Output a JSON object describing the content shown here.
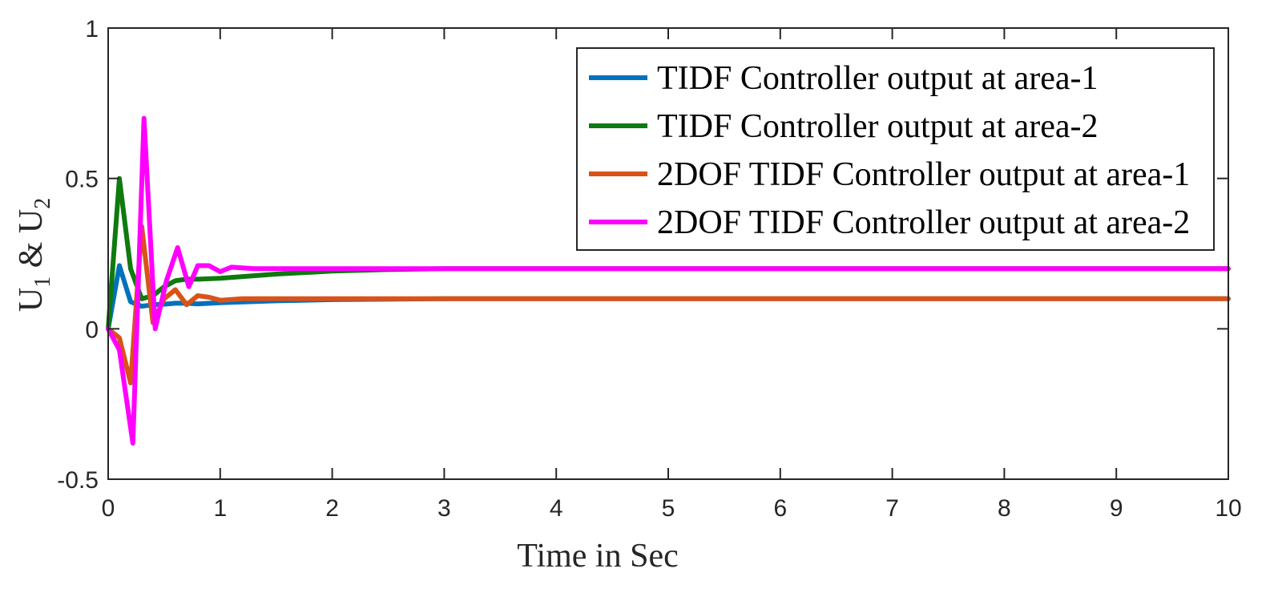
{
  "chart_data": {
    "type": "line",
    "title": "",
    "xlabel": "Time in Sec",
    "ylabel": {
      "u1": "U",
      "sub1": "1",
      "amp": " & ",
      "u2": "U",
      "sub2": "2"
    },
    "xlim": [
      0,
      10
    ],
    "ylim": [
      -0.5,
      1
    ],
    "xticks": [
      0,
      1,
      2,
      3,
      4,
      5,
      6,
      7,
      8,
      9,
      10
    ],
    "xtick_labels": [
      "0",
      "1",
      "2",
      "3",
      "4",
      "5",
      "6",
      "7",
      "8",
      "9",
      "10"
    ],
    "yticks": [
      -0.5,
      0,
      0.5,
      1
    ],
    "ytick_labels": [
      "-0.5",
      "0",
      "0.5",
      "1"
    ],
    "grid": false,
    "legend_position": "top-right",
    "series": [
      {
        "name": "TIDF Controller output at area-1",
        "color": "#0072bd",
        "x": [
          0,
          0.1,
          0.2,
          0.3,
          0.4,
          0.5,
          0.6,
          0.7,
          0.8,
          1.0,
          1.5,
          2.0,
          3.0,
          10.0
        ],
        "y": [
          0,
          0.21,
          0.09,
          0.075,
          0.08,
          0.082,
          0.085,
          0.085,
          0.083,
          0.087,
          0.093,
          0.097,
          0.1,
          0.1
        ]
      },
      {
        "name": "TIDF Controller output at area-2",
        "color": "#0f7a0f",
        "x": [
          0,
          0.1,
          0.2,
          0.3,
          0.4,
          0.5,
          0.6,
          0.7,
          0.8,
          1.0,
          1.5,
          2.0,
          2.5,
          3.0,
          10.0
        ],
        "y": [
          0,
          0.5,
          0.2,
          0.1,
          0.11,
          0.14,
          0.16,
          0.165,
          0.165,
          0.168,
          0.182,
          0.192,
          0.197,
          0.2,
          0.2
        ]
      },
      {
        "name": "2DOF TIDF Controller output at area-1",
        "color": "#d95319",
        "x": [
          0,
          0.1,
          0.2,
          0.3,
          0.4,
          0.5,
          0.6,
          0.7,
          0.8,
          0.9,
          1.0,
          1.2,
          1.5,
          2.0,
          10.0
        ],
        "y": [
          0,
          -0.03,
          -0.18,
          0.34,
          0.02,
          0.1,
          0.13,
          0.08,
          0.11,
          0.105,
          0.095,
          0.1,
          0.1,
          0.1,
          0.1
        ]
      },
      {
        "name": "2DOF TIDF Controller output at area-2",
        "color": "#ff00ff",
        "x": [
          0,
          0.1,
          0.15,
          0.22,
          0.32,
          0.42,
          0.52,
          0.62,
          0.72,
          0.8,
          0.9,
          1.0,
          1.1,
          1.3,
          1.6,
          2.0,
          10.0
        ],
        "y": [
          0,
          -0.07,
          -0.2,
          -0.38,
          0.7,
          0.0,
          0.16,
          0.27,
          0.14,
          0.21,
          0.21,
          0.19,
          0.205,
          0.2,
          0.2,
          0.2,
          0.2
        ]
      }
    ]
  }
}
